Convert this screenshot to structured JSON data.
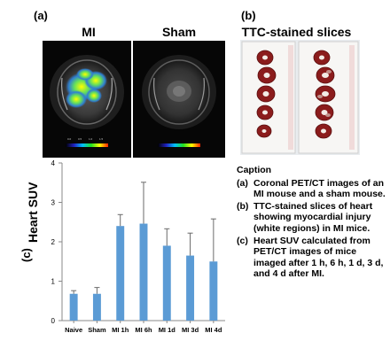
{
  "panels": {
    "a": {
      "label": "(a)",
      "left_title": "MI",
      "right_title": "Sham",
      "colorbar_ticks": [
        "0.0",
        "0.5",
        "1.0",
        "1.5"
      ]
    },
    "b": {
      "label": "(b)",
      "title": "TTC-stained slices"
    },
    "c": {
      "label": "(c)"
    }
  },
  "chart_data": {
    "type": "bar",
    "categories": [
      "Naive",
      "Sham",
      "MI 1h",
      "MI 6h",
      "MI 1d",
      "MI 3d",
      "MI 4d"
    ],
    "values": [
      0.68,
      0.68,
      2.4,
      2.46,
      1.9,
      1.65,
      1.5
    ],
    "errors": [
      0.08,
      0.16,
      0.29,
      1.05,
      0.43,
      0.57,
      1.08
    ],
    "ylabel": "Heart SUV",
    "ylim": [
      0,
      4
    ],
    "yticks": [
      "0",
      "1",
      "2",
      "3",
      "4"
    ],
    "color": "#5b9bd5"
  },
  "caption": {
    "heading": "Caption",
    "items": [
      {
        "key": "(a)",
        "text": "Coronal PET/CT images of an MI mouse and a sham mouse."
      },
      {
        "key": "(b)",
        "text": "TTC-stained slices of heart showing myocardial injury (white regions) in MI mice."
      },
      {
        "key": "(c)",
        "text": "Heart SUV calculated from PET/CT images of mice imaged after 1 h, 6 h, 1 d, 3 d, and 4 d after MI."
      }
    ]
  }
}
